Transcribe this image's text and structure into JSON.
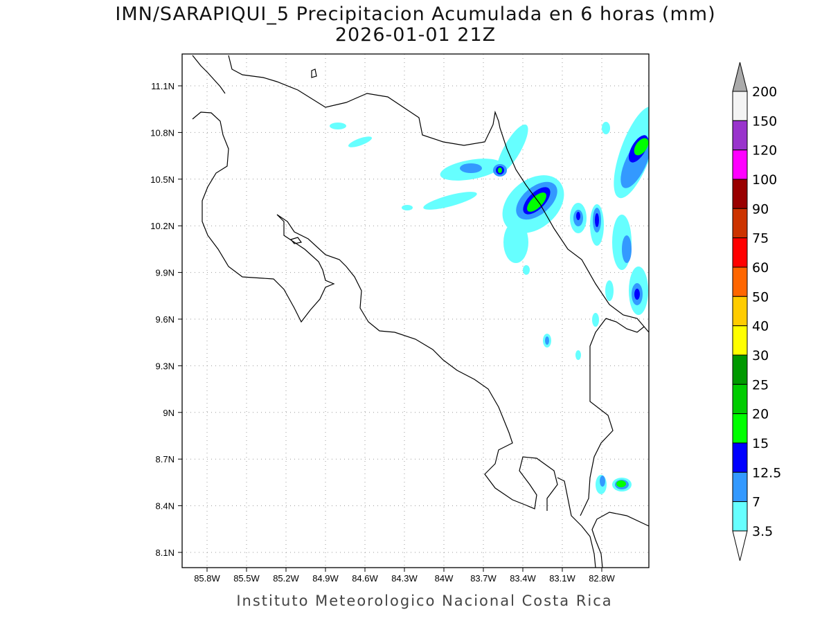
{
  "title": "IMN/SARAPIQUI_5 Precipitacion Acumulada en 6 horas (mm)",
  "subtitle": "2026-01-01 21Z",
  "footer": "Instituto Meteorologico Nacional Costa Rica",
  "map": {
    "lon_ticks": [
      "85.8W",
      "85.5W",
      "85.2W",
      "84.9W",
      "84.6W",
      "84.3W",
      "84W",
      "83.7W",
      "83.4W",
      "83.1W",
      "82.8W"
    ],
    "lat_ticks": [
      "11.1N",
      "10.8N",
      "10.5N",
      "10.2N",
      "9.9N",
      "9.6N",
      "9.3N",
      "9N",
      "8.7N",
      "8.4N",
      "8.1N"
    ]
  },
  "colorbar": {
    "labels": [
      "200",
      "150",
      "120",
      "100",
      "90",
      "75",
      "60",
      "50",
      "40",
      "30",
      "25",
      "20",
      "15",
      "12.5",
      "7",
      "3.5"
    ],
    "colors": [
      "#f4f4f4",
      "#9933cc",
      "#ff00ff",
      "#990000",
      "#cc3300",
      "#ff0000",
      "#ff6600",
      "#ffcc00",
      "#ffff00",
      "#009900",
      "#00cc00",
      "#00ff00",
      "#0000ff",
      "#3399ff",
      "#66ffff"
    ],
    "over_color": "#aaaaaa",
    "under_color": "#ffffff"
  }
}
